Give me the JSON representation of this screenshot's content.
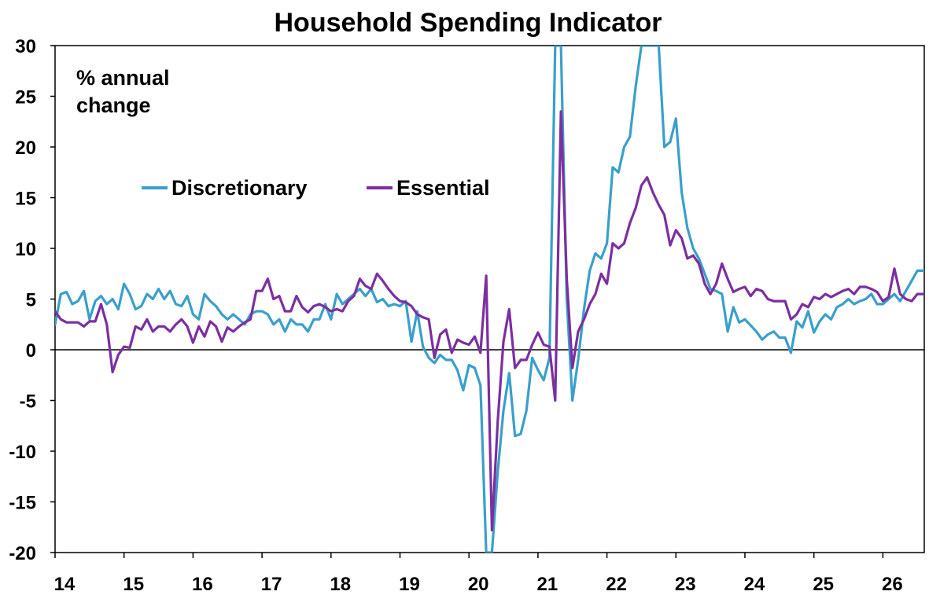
{
  "chart_data": {
    "type": "line",
    "title": "Household Spending Indicator",
    "annotation": [
      "% annual",
      "change"
    ],
    "xlabel": "",
    "ylabel": "",
    "ylim": [
      -20,
      30
    ],
    "yticks": [
      30,
      25,
      20,
      15,
      10,
      5,
      0,
      -5,
      -10,
      -15,
      -20
    ],
    "xlim": [
      14.0,
      26.6
    ],
    "xticks": [
      "14",
      "15",
      "16",
      "17",
      "18",
      "19",
      "20",
      "21",
      "22",
      "23",
      "24",
      "25",
      "26"
    ],
    "grid": false,
    "legend_position": "upper-left",
    "colors": {
      "discretionary": "#3A9FCB",
      "essential": "#7B2FA0",
      "axis": "#000000"
    },
    "series": [
      {
        "name": "Discretionary",
        "color": "#3A9FCB",
        "points": [
          [
            14.0,
            2.5
          ],
          [
            14.083,
            5.5
          ],
          [
            14.167,
            5.7
          ],
          [
            14.25,
            4.5
          ],
          [
            14.333,
            4.8
          ],
          [
            14.417,
            5.8
          ],
          [
            14.5,
            3.0
          ],
          [
            14.583,
            4.8
          ],
          [
            14.667,
            5.3
          ],
          [
            14.75,
            4.5
          ],
          [
            14.833,
            5.0
          ],
          [
            14.917,
            4.0
          ],
          [
            15.0,
            6.5
          ],
          [
            15.083,
            5.5
          ],
          [
            15.167,
            4.0
          ],
          [
            15.25,
            4.3
          ],
          [
            15.333,
            5.5
          ],
          [
            15.417,
            5.0
          ],
          [
            15.5,
            6.0
          ],
          [
            15.583,
            5.0
          ],
          [
            15.667,
            5.8
          ],
          [
            15.75,
            4.5
          ],
          [
            15.833,
            4.3
          ],
          [
            15.917,
            5.3
          ],
          [
            16.0,
            3.5
          ],
          [
            16.083,
            3.0
          ],
          [
            16.167,
            5.5
          ],
          [
            16.25,
            4.8
          ],
          [
            16.333,
            4.3
          ],
          [
            16.417,
            3.5
          ],
          [
            16.5,
            3.0
          ],
          [
            16.583,
            3.5
          ],
          [
            16.667,
            3.0
          ],
          [
            16.75,
            2.5
          ],
          [
            16.833,
            3.5
          ],
          [
            16.917,
            3.8
          ],
          [
            17.0,
            3.8
          ],
          [
            17.083,
            3.5
          ],
          [
            17.167,
            2.5
          ],
          [
            17.25,
            3.0
          ],
          [
            17.333,
            1.8
          ],
          [
            17.417,
            3.0
          ],
          [
            17.5,
            2.5
          ],
          [
            17.583,
            2.5
          ],
          [
            17.667,
            1.8
          ],
          [
            17.75,
            3.0
          ],
          [
            17.833,
            3.0
          ],
          [
            17.917,
            4.5
          ],
          [
            18.0,
            3.0
          ],
          [
            18.083,
            5.5
          ],
          [
            18.167,
            4.5
          ],
          [
            18.25,
            5.0
          ],
          [
            18.333,
            5.5
          ],
          [
            18.417,
            6.0
          ],
          [
            18.5,
            5.3
          ],
          [
            18.583,
            6.0
          ],
          [
            18.667,
            4.7
          ],
          [
            18.75,
            5.0
          ],
          [
            18.833,
            4.3
          ],
          [
            18.917,
            4.5
          ],
          [
            19.0,
            4.3
          ],
          [
            19.083,
            4.8
          ],
          [
            19.167,
            0.8
          ],
          [
            19.25,
            3.8
          ],
          [
            19.333,
            0.3
          ],
          [
            19.417,
            -0.8
          ],
          [
            19.5,
            -1.3
          ],
          [
            19.583,
            -0.5
          ],
          [
            19.667,
            -1.0
          ],
          [
            19.75,
            -1.0
          ],
          [
            19.833,
            -2.0
          ],
          [
            19.917,
            -4.0
          ],
          [
            20.0,
            -1.5
          ],
          [
            20.083,
            -1.8
          ],
          [
            20.167,
            -3.5
          ],
          [
            20.25,
            -20.0
          ],
          [
            20.333,
            -20.0
          ],
          [
            20.417,
            -12.0
          ],
          [
            20.5,
            -6.0
          ],
          [
            20.583,
            -2.3
          ],
          [
            20.667,
            -8.5
          ],
          [
            20.75,
            -8.3
          ],
          [
            20.833,
            -6.0
          ],
          [
            20.917,
            -0.8
          ],
          [
            21.0,
            -2.0
          ],
          [
            21.083,
            -3.0
          ],
          [
            21.167,
            -0.8
          ],
          [
            21.25,
            30.0
          ],
          [
            21.333,
            30.0
          ],
          [
            21.417,
            5.0
          ],
          [
            21.5,
            -5.0
          ],
          [
            21.583,
            -1.0
          ],
          [
            21.667,
            4.0
          ],
          [
            21.75,
            7.8
          ],
          [
            21.833,
            9.5
          ],
          [
            21.917,
            9.0
          ],
          [
            22.0,
            10.5
          ],
          [
            22.083,
            18.0
          ],
          [
            22.167,
            17.5
          ],
          [
            22.25,
            20.0
          ],
          [
            22.333,
            21.0
          ],
          [
            22.417,
            26.0
          ],
          [
            22.5,
            30.0
          ],
          [
            22.583,
            30.0
          ],
          [
            22.667,
            30.0
          ],
          [
            22.75,
            30.0
          ],
          [
            22.833,
            20.0
          ],
          [
            22.917,
            20.5
          ],
          [
            23.0,
            22.8
          ],
          [
            23.083,
            15.5
          ],
          [
            23.167,
            12.0
          ],
          [
            23.25,
            10.0
          ],
          [
            23.333,
            9.0
          ],
          [
            23.417,
            7.5
          ],
          [
            23.5,
            6.0
          ],
          [
            23.583,
            5.8
          ],
          [
            23.667,
            5.5
          ],
          [
            23.75,
            1.8
          ],
          [
            23.833,
            4.2
          ],
          [
            23.917,
            2.7
          ],
          [
            24.0,
            3.0
          ],
          [
            24.083,
            2.4
          ],
          [
            24.167,
            1.8
          ],
          [
            24.25,
            1.0
          ],
          [
            24.333,
            1.5
          ],
          [
            24.417,
            1.8
          ],
          [
            24.5,
            1.2
          ],
          [
            24.583,
            1.2
          ],
          [
            24.667,
            -0.3
          ],
          [
            24.75,
            2.8
          ],
          [
            24.833,
            2.2
          ],
          [
            24.917,
            3.8
          ],
          [
            25.0,
            1.7
          ],
          [
            25.083,
            2.8
          ],
          [
            25.167,
            3.5
          ],
          [
            25.25,
            3.0
          ],
          [
            25.333,
            4.2
          ],
          [
            25.417,
            4.5
          ],
          [
            25.5,
            5.0
          ],
          [
            25.583,
            4.5
          ],
          [
            25.667,
            4.8
          ],
          [
            25.75,
            5.0
          ],
          [
            25.833,
            5.5
          ],
          [
            25.917,
            4.5
          ],
          [
            26.0,
            4.5
          ],
          [
            26.083,
            5.0
          ],
          [
            26.167,
            5.5
          ],
          [
            26.25,
            4.8
          ],
          [
            26.333,
            5.8
          ],
          [
            26.417,
            6.8
          ],
          [
            26.5,
            7.8
          ],
          [
            26.6,
            7.8
          ]
        ]
      },
      {
        "name": "Essential",
        "color": "#7B2FA0",
        "points": [
          [
            14.0,
            3.8
          ],
          [
            14.083,
            3.0
          ],
          [
            14.167,
            2.7
          ],
          [
            14.25,
            2.7
          ],
          [
            14.333,
            2.7
          ],
          [
            14.417,
            2.3
          ],
          [
            14.5,
            2.8
          ],
          [
            14.583,
            2.8
          ],
          [
            14.667,
            4.5
          ],
          [
            14.75,
            2.5
          ],
          [
            14.833,
            -2.2
          ],
          [
            14.917,
            -0.5
          ],
          [
            15.0,
            0.3
          ],
          [
            15.083,
            0.2
          ],
          [
            15.167,
            2.3
          ],
          [
            15.25,
            2.0
          ],
          [
            15.333,
            3.0
          ],
          [
            15.417,
            1.8
          ],
          [
            15.5,
            2.3
          ],
          [
            15.583,
            2.3
          ],
          [
            15.667,
            1.8
          ],
          [
            15.75,
            2.5
          ],
          [
            15.833,
            3.0
          ],
          [
            15.917,
            2.3
          ],
          [
            16.0,
            0.7
          ],
          [
            16.083,
            2.3
          ],
          [
            16.167,
            1.3
          ],
          [
            16.25,
            2.8
          ],
          [
            16.333,
            2.3
          ],
          [
            16.417,
            0.8
          ],
          [
            16.5,
            2.2
          ],
          [
            16.583,
            1.8
          ],
          [
            16.667,
            2.3
          ],
          [
            16.75,
            2.7
          ],
          [
            16.833,
            3.0
          ],
          [
            16.917,
            5.8
          ],
          [
            17.0,
            5.8
          ],
          [
            17.083,
            7.0
          ],
          [
            17.167,
            5.0
          ],
          [
            17.25,
            5.3
          ],
          [
            17.333,
            3.8
          ],
          [
            17.417,
            3.8
          ],
          [
            17.5,
            5.3
          ],
          [
            17.583,
            4.2
          ],
          [
            17.667,
            3.7
          ],
          [
            17.75,
            4.3
          ],
          [
            17.833,
            4.5
          ],
          [
            17.917,
            4.2
          ],
          [
            18.0,
            3.8
          ],
          [
            18.083,
            4.0
          ],
          [
            18.167,
            3.8
          ],
          [
            18.25,
            4.8
          ],
          [
            18.333,
            5.3
          ],
          [
            18.417,
            7.0
          ],
          [
            18.5,
            6.3
          ],
          [
            18.583,
            6.0
          ],
          [
            18.667,
            7.5
          ],
          [
            18.75,
            6.8
          ],
          [
            18.833,
            6.0
          ],
          [
            18.917,
            5.3
          ],
          [
            19.0,
            4.8
          ],
          [
            19.083,
            4.7
          ],
          [
            19.167,
            4.3
          ],
          [
            19.25,
            3.5
          ],
          [
            19.333,
            3.2
          ],
          [
            19.417,
            3.0
          ],
          [
            19.5,
            -0.8
          ],
          [
            19.583,
            1.5
          ],
          [
            19.667,
            2.0
          ],
          [
            19.75,
            -0.3
          ],
          [
            19.833,
            1.0
          ],
          [
            19.917,
            0.7
          ],
          [
            20.0,
            0.5
          ],
          [
            20.083,
            1.3
          ],
          [
            20.167,
            -0.3
          ],
          [
            20.25,
            7.3
          ],
          [
            20.333,
            -17.8
          ],
          [
            20.417,
            -7.0
          ],
          [
            20.5,
            0.8
          ],
          [
            20.583,
            4.0
          ],
          [
            20.667,
            -1.8
          ],
          [
            20.75,
            -1.0
          ],
          [
            20.833,
            -1.0
          ],
          [
            20.917,
            0.5
          ],
          [
            21.0,
            1.7
          ],
          [
            21.083,
            0.5
          ],
          [
            21.167,
            0.3
          ],
          [
            21.25,
            -5.0
          ],
          [
            21.333,
            23.5
          ],
          [
            21.417,
            7.0
          ],
          [
            21.5,
            -1.8
          ],
          [
            21.583,
            1.8
          ],
          [
            21.667,
            3.0
          ],
          [
            21.75,
            4.5
          ],
          [
            21.833,
            5.5
          ],
          [
            21.917,
            7.5
          ],
          [
            22.0,
            6.5
          ],
          [
            22.083,
            10.5
          ],
          [
            22.167,
            10.0
          ],
          [
            22.25,
            10.5
          ],
          [
            22.333,
            12.5
          ],
          [
            22.417,
            14.0
          ],
          [
            22.5,
            16.2
          ],
          [
            22.583,
            17.0
          ],
          [
            22.667,
            15.5
          ],
          [
            22.75,
            14.3
          ],
          [
            22.833,
            13.3
          ],
          [
            22.917,
            10.3
          ],
          [
            23.0,
            11.8
          ],
          [
            23.083,
            11.0
          ],
          [
            23.167,
            9.0
          ],
          [
            23.25,
            9.3
          ],
          [
            23.333,
            8.5
          ],
          [
            23.417,
            6.5
          ],
          [
            23.5,
            5.5
          ],
          [
            23.583,
            6.5
          ],
          [
            23.667,
            8.5
          ],
          [
            23.75,
            7.0
          ],
          [
            23.833,
            5.7
          ],
          [
            23.917,
            6.0
          ],
          [
            24.0,
            6.2
          ],
          [
            24.083,
            5.3
          ],
          [
            24.167,
            6.0
          ],
          [
            24.25,
            5.8
          ],
          [
            24.333,
            5.0
          ],
          [
            24.417,
            4.8
          ],
          [
            24.5,
            4.8
          ],
          [
            24.583,
            4.8
          ],
          [
            24.667,
            3.0
          ],
          [
            24.75,
            3.5
          ],
          [
            24.833,
            4.5
          ],
          [
            24.917,
            4.2
          ],
          [
            25.0,
            5.2
          ],
          [
            25.083,
            5.0
          ],
          [
            25.167,
            5.5
          ],
          [
            25.25,
            5.2
          ],
          [
            25.333,
            5.5
          ],
          [
            25.417,
            5.8
          ],
          [
            25.5,
            6.0
          ],
          [
            25.583,
            5.5
          ],
          [
            25.667,
            6.2
          ],
          [
            25.75,
            6.2
          ],
          [
            25.833,
            6.0
          ],
          [
            25.917,
            5.7
          ],
          [
            26.0,
            4.8
          ],
          [
            26.083,
            5.2
          ],
          [
            26.167,
            8.0
          ],
          [
            26.25,
            5.5
          ],
          [
            26.333,
            5.0
          ],
          [
            26.417,
            4.8
          ],
          [
            26.5,
            5.5
          ],
          [
            26.6,
            5.5
          ]
        ]
      }
    ]
  }
}
